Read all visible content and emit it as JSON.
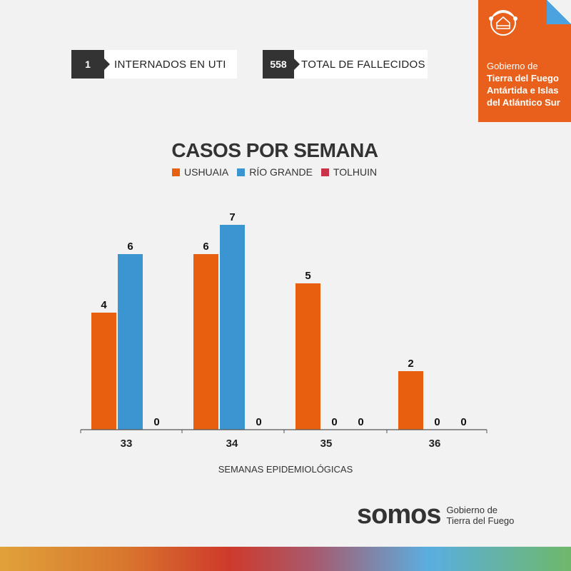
{
  "stats": [
    {
      "value": "1",
      "label": "INTERNADOS EN UTI"
    },
    {
      "value": "558",
      "label": "TOTAL DE FALLECIDOS"
    }
  ],
  "government": {
    "line1": "Gobierno de",
    "line2": "Tierra del Fuego Antártida e Islas del Atlántico Sur",
    "seal_icon": "provincial-seal-icon"
  },
  "colors": {
    "ushuaia": "#e8600f",
    "rio_grande": "#3b95d0",
    "tolhuin": "#c8334a",
    "brand": "#e8601c"
  },
  "chart_data": {
    "type": "bar",
    "title": "CASOS POR SEMANA",
    "xlabel": "SEMANAS EPIDEMIOLÓGICAS",
    "ylabel": "",
    "categories": [
      "33",
      "34",
      "35",
      "36"
    ],
    "series": [
      {
        "name": "USHUAIA",
        "values": [
          4,
          6,
          5,
          2
        ]
      },
      {
        "name": "RÍO GRANDE",
        "values": [
          6,
          7,
          0,
          0
        ]
      },
      {
        "name": "TOLHUIN",
        "values": [
          0,
          0,
          0,
          0
        ]
      }
    ],
    "ylim": [
      0,
      7
    ],
    "grid": false,
    "legend": "top-center"
  },
  "footer": {
    "brand": "somos",
    "tagline_line1": "Gobierno de",
    "tagline_line2": "Tierra del Fuego"
  }
}
